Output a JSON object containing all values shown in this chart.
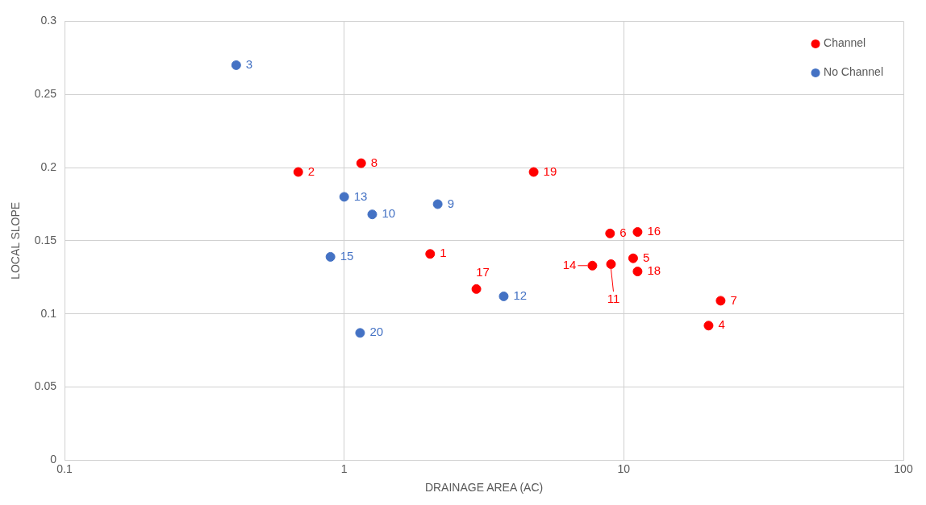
{
  "chart_data": {
    "type": "scatter",
    "xlabel": "DRAINAGE AREA (AC)",
    "ylabel": "LOCAL SLOPE",
    "log": "x",
    "xlim": [
      0.1,
      100
    ],
    "xticks": [
      0.1,
      1,
      10,
      100
    ],
    "ylim": [
      0,
      0.3
    ],
    "yticks": [
      0,
      0.05,
      0.1,
      0.15,
      0.2,
      0.25,
      0.3
    ],
    "grid": true,
    "legend": "top right",
    "marker": "circle",
    "series": [
      {
        "name": "Channel",
        "color": "#ff0000",
        "x": [
          2.03,
          0.685,
          1.15,
          4.76,
          8.93,
          11.2,
          7.72,
          9.0,
          10.8,
          11.2,
          2.97,
          22.2,
          20.1
        ],
        "values": [
          0.141,
          0.197,
          0.203,
          0.197,
          0.155,
          0.156,
          0.133,
          0.134,
          0.138,
          0.129,
          0.117,
          0.109,
          0.092
        ]
      },
      {
        "name": "No Channel",
        "color": "#4472c4",
        "x": [
          0.411,
          1.0,
          1.26,
          2.16,
          0.893,
          3.72,
          1.14
        ],
        "values": [
          0.27,
          0.18,
          0.168,
          0.175,
          0.139,
          0.112,
          0.087
        ]
      }
    ],
    "annotations": [
      {
        "text": "1",
        "x": 2.03,
        "y": 0.141
      },
      {
        "text": "2",
        "x": 0.685,
        "y": 0.197
      },
      {
        "text": "8",
        "x": 1.15,
        "y": 0.203
      },
      {
        "text": "19",
        "x": 4.76,
        "y": 0.197
      },
      {
        "text": "6",
        "x": 8.93,
        "y": 0.155
      },
      {
        "text": "16",
        "x": 11.2,
        "y": 0.156
      },
      {
        "text": "14",
        "x": 7.72,
        "y": 0.133
      },
      {
        "text": "11",
        "x": 9.0,
        "y": 0.134
      },
      {
        "text": "5",
        "x": 10.8,
        "y": 0.138
      },
      {
        "text": "18",
        "x": 11.2,
        "y": 0.129
      },
      {
        "text": "17",
        "x": 2.97,
        "y": 0.117
      },
      {
        "text": "7",
        "x": 22.2,
        "y": 0.109
      },
      {
        "text": "4",
        "x": 20.1,
        "y": 0.092
      },
      {
        "text": "3",
        "x": 0.411,
        "y": 0.27
      },
      {
        "text": "13",
        "x": 1.0,
        "y": 0.18
      },
      {
        "text": "10",
        "x": 1.26,
        "y": 0.168
      },
      {
        "text": "9",
        "x": 2.16,
        "y": 0.175
      },
      {
        "text": "15",
        "x": 0.893,
        "y": 0.139
      },
      {
        "text": "12",
        "x": 3.72,
        "y": 0.112
      },
      {
        "text": "20",
        "x": 1.14,
        "y": 0.087
      }
    ]
  }
}
